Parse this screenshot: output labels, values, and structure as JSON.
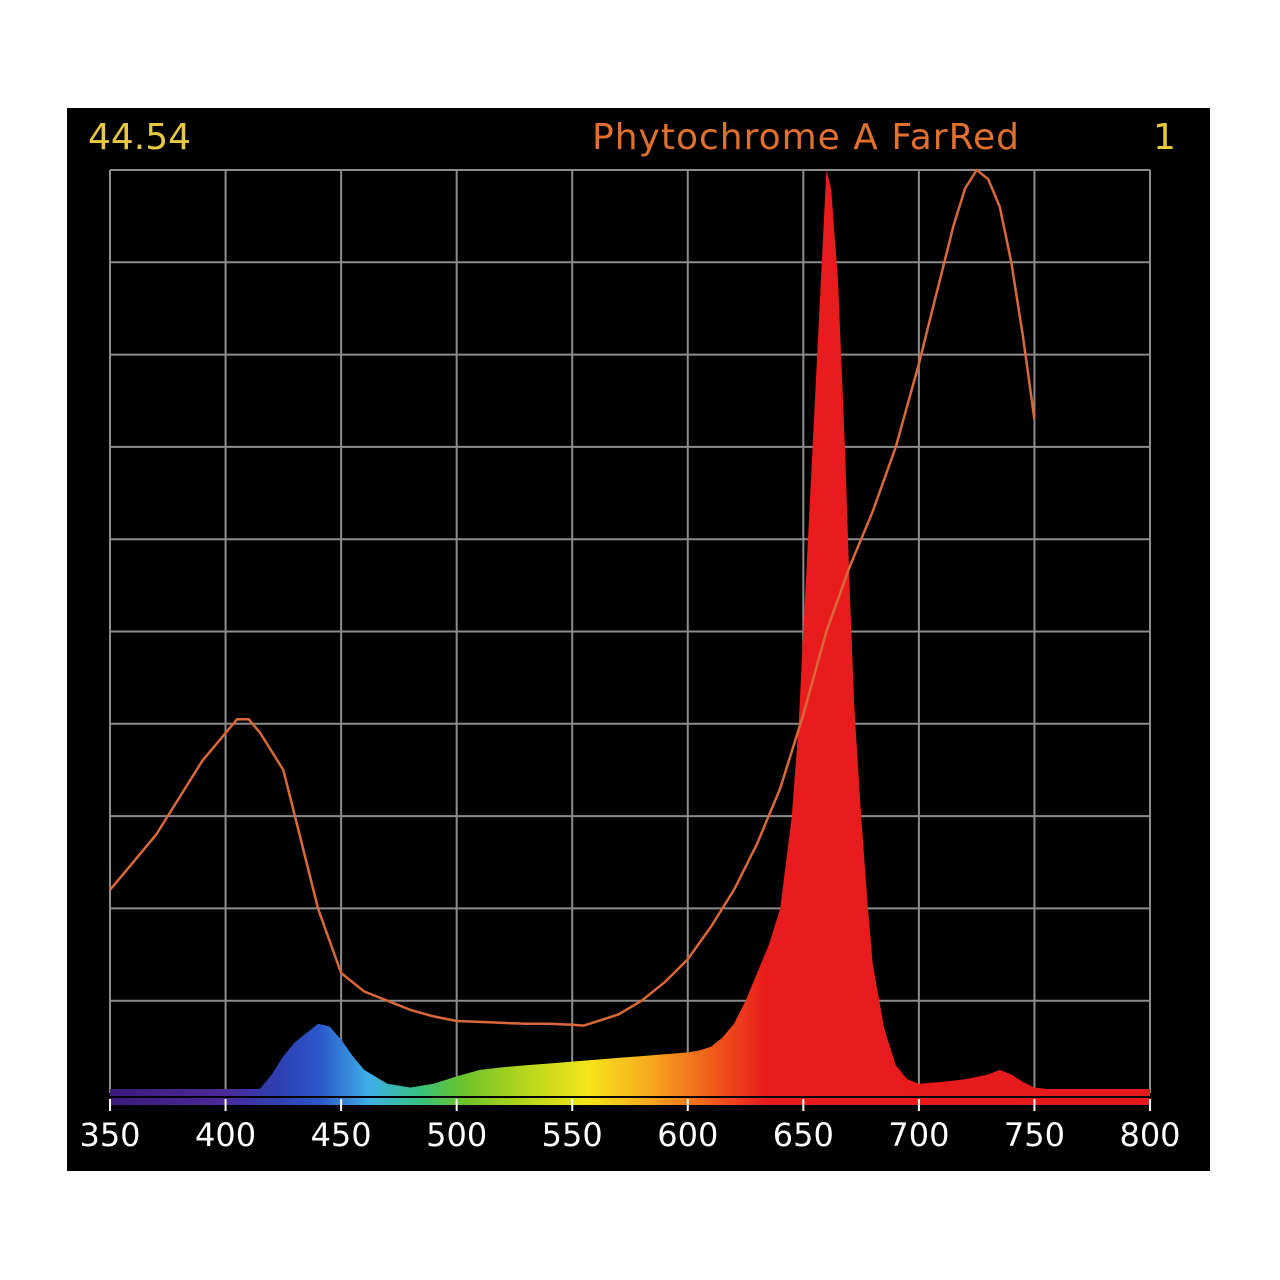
{
  "header": {
    "value": "44.54",
    "title": "Phytochrome A FarRed",
    "index": "1"
  },
  "colors": {
    "background": "#000000",
    "grid": "#8c8c8c",
    "header_value": "#e8c840",
    "header_title": "#e0702c",
    "header_index": "#e8c840",
    "curve": "#d9683a",
    "tick_label": "#ffffff"
  },
  "chart_data": {
    "type": "area",
    "title": "Phytochrome A FarRed",
    "xlabel": "",
    "ylabel": "",
    "xlim": [
      350,
      800
    ],
    "ylim": [
      0,
      1
    ],
    "x_ticks": [
      "350",
      "400",
      "450",
      "500",
      "550",
      "600",
      "650",
      "700",
      "750",
      "800"
    ],
    "grid": true,
    "legend": "none",
    "series": [
      {
        "kind": "filled-area",
        "x": [
          350,
          400,
          410,
          415,
          420,
          425,
          430,
          435,
          440,
          445,
          450,
          455,
          460,
          470,
          480,
          490,
          500,
          510,
          520,
          530,
          540,
          550,
          560,
          570,
          580,
          590,
          600,
          605,
          610,
          615,
          620,
          625,
          630,
          635,
          640,
          645,
          648,
          650,
          652,
          655,
          658,
          660,
          662,
          665,
          668,
          670,
          672,
          675,
          678,
          680,
          685,
          690,
          695,
          700,
          710,
          720,
          730,
          735,
          740,
          745,
          750,
          760,
          770,
          800
        ],
        "y": [
          0.0,
          0.0,
          0.001,
          0.005,
          0.02,
          0.04,
          0.055,
          0.065,
          0.075,
          0.072,
          0.058,
          0.04,
          0.025,
          0.01,
          0.006,
          0.01,
          0.018,
          0.025,
          0.028,
          0.03,
          0.032,
          0.034,
          0.036,
          0.038,
          0.04,
          0.042,
          0.044,
          0.046,
          0.05,
          0.06,
          0.075,
          0.1,
          0.13,
          0.16,
          0.2,
          0.3,
          0.4,
          0.5,
          0.6,
          0.75,
          0.9,
          1.0,
          0.98,
          0.88,
          0.7,
          0.55,
          0.42,
          0.3,
          0.2,
          0.14,
          0.07,
          0.03,
          0.015,
          0.01,
          0.012,
          0.015,
          0.02,
          0.025,
          0.02,
          0.012,
          0.006,
          0.003,
          0.001,
          0.0
        ]
      },
      {
        "kind": "line",
        "x": [
          350,
          360,
          370,
          380,
          390,
          400,
          405,
          410,
          415,
          420,
          425,
          430,
          440,
          450,
          460,
          470,
          480,
          490,
          500,
          510,
          520,
          530,
          540,
          550,
          555,
          560,
          570,
          580,
          590,
          600,
          610,
          620,
          630,
          640,
          650,
          660,
          670,
          680,
          690,
          700,
          705,
          710,
          715,
          720,
          725,
          730,
          735,
          740,
          745,
          750
        ],
        "y": [
          0.22,
          0.25,
          0.28,
          0.32,
          0.36,
          0.39,
          0.405,
          0.405,
          0.39,
          0.37,
          0.35,
          0.3,
          0.2,
          0.13,
          0.11,
          0.1,
          0.09,
          0.083,
          0.078,
          0.077,
          0.076,
          0.075,
          0.075,
          0.074,
          0.073,
          0.077,
          0.085,
          0.1,
          0.12,
          0.145,
          0.18,
          0.22,
          0.27,
          0.33,
          0.41,
          0.5,
          0.57,
          0.63,
          0.7,
          0.79,
          0.84,
          0.89,
          0.94,
          0.98,
          1.0,
          0.99,
          0.96,
          0.9,
          0.82,
          0.73
        ]
      }
    ]
  }
}
